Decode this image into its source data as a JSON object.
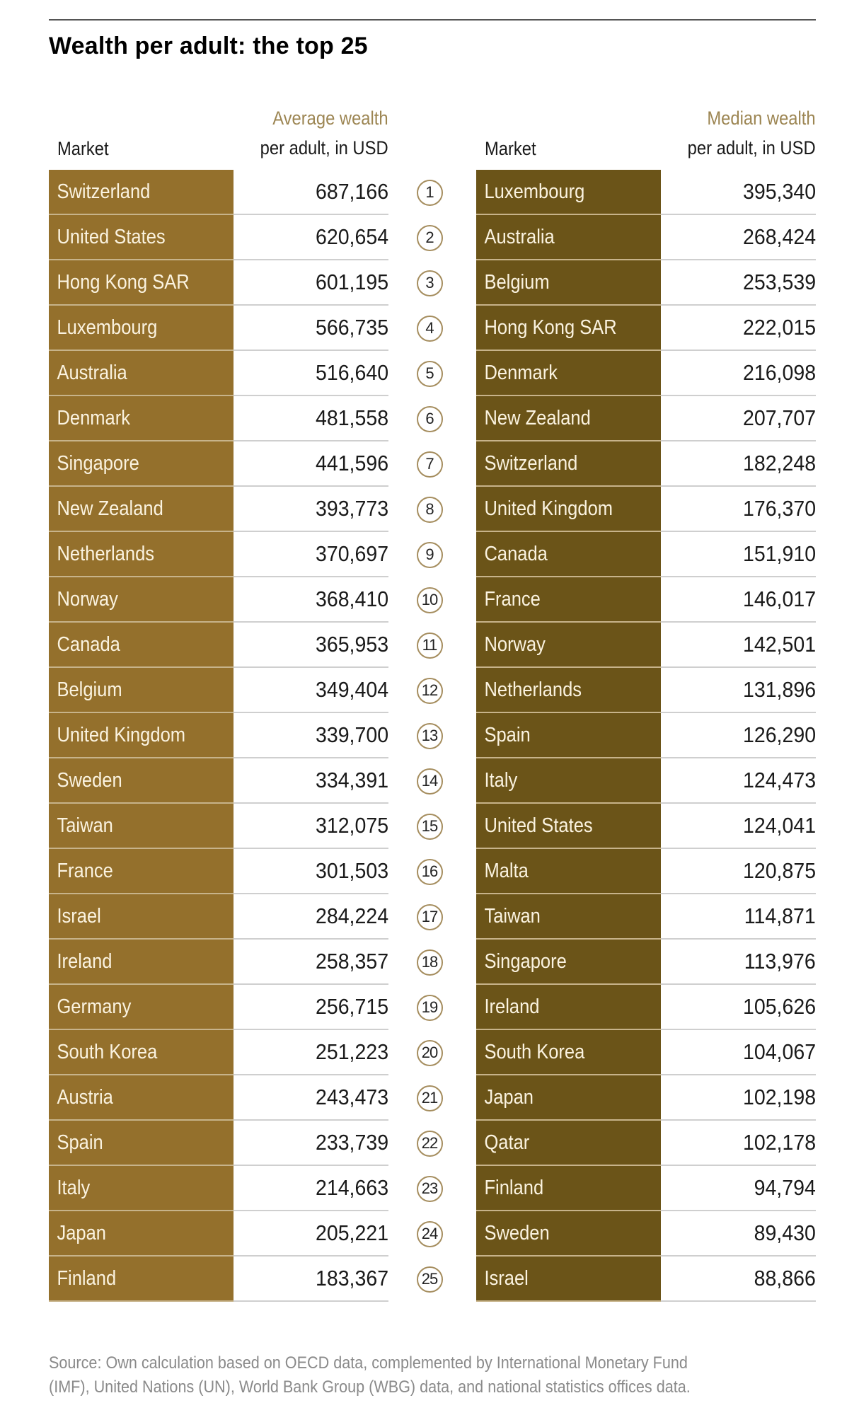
{
  "title": "Wealth per adult: the top 25",
  "left_table": {
    "market_header": "Market",
    "value_header_line1": "Average wealth",
    "value_header_line2": "per adult, in USD",
    "rows": [
      {
        "market": "Switzerland",
        "value": "687,166"
      },
      {
        "market": "United States",
        "value": "620,654"
      },
      {
        "market": "Hong Kong SAR",
        "value": "601,195"
      },
      {
        "market": "Luxembourg",
        "value": "566,735"
      },
      {
        "market": "Australia",
        "value": "516,640"
      },
      {
        "market": "Denmark",
        "value": "481,558"
      },
      {
        "market": "Singapore",
        "value": "441,596"
      },
      {
        "market": "New Zealand",
        "value": "393,773"
      },
      {
        "market": "Netherlands",
        "value": "370,697"
      },
      {
        "market": "Norway",
        "value": "368,410"
      },
      {
        "market": "Canada",
        "value": "365,953"
      },
      {
        "market": "Belgium",
        "value": "349,404"
      },
      {
        "market": "United Kingdom",
        "value": "339,700"
      },
      {
        "market": "Sweden",
        "value": "334,391"
      },
      {
        "market": "Taiwan",
        "value": "312,075"
      },
      {
        "market": "France",
        "value": "301,503"
      },
      {
        "market": "Israel",
        "value": "284,224"
      },
      {
        "market": "Ireland",
        "value": "258,357"
      },
      {
        "market": "Germany",
        "value": "256,715"
      },
      {
        "market": "South Korea",
        "value": "251,223"
      },
      {
        "market": "Austria",
        "value": "243,473"
      },
      {
        "market": "Spain",
        "value": "233,739"
      },
      {
        "market": "Italy",
        "value": "214,663"
      },
      {
        "market": "Japan",
        "value": "205,221"
      },
      {
        "market": "Finland",
        "value": "183,367"
      }
    ]
  },
  "ranks": [
    "1",
    "2",
    "3",
    "4",
    "5",
    "6",
    "7",
    "8",
    "9",
    "10",
    "11",
    "12",
    "13",
    "14",
    "15",
    "16",
    "17",
    "18",
    "19",
    "20",
    "21",
    "22",
    "23",
    "24",
    "25"
  ],
  "right_table": {
    "market_header": "Market",
    "value_header_line1": "Median wealth",
    "value_header_line2": "per adult, in USD",
    "rows": [
      {
        "market": "Luxembourg",
        "value": "395,340"
      },
      {
        "market": "Australia",
        "value": "268,424"
      },
      {
        "market": "Belgium",
        "value": "253,539"
      },
      {
        "market": "Hong Kong SAR",
        "value": "222,015"
      },
      {
        "market": "Denmark",
        "value": "216,098"
      },
      {
        "market": "New Zealand",
        "value": "207,707"
      },
      {
        "market": "Switzerland",
        "value": "182,248"
      },
      {
        "market": "United Kingdom",
        "value": "176,370"
      },
      {
        "market": "Canada",
        "value": "151,910"
      },
      {
        "market": "France",
        "value": "146,017"
      },
      {
        "market": "Norway",
        "value": "142,501"
      },
      {
        "market": "Netherlands",
        "value": "131,896"
      },
      {
        "market": "Spain",
        "value": "126,290"
      },
      {
        "market": "Italy",
        "value": "124,473"
      },
      {
        "market": "United States",
        "value": "124,041"
      },
      {
        "market": "Malta",
        "value": "120,875"
      },
      {
        "market": "Taiwan",
        "value": "114,871"
      },
      {
        "market": "Singapore",
        "value": "113,976"
      },
      {
        "market": "Ireland",
        "value": "105,626"
      },
      {
        "market": "South Korea",
        "value": "104,067"
      },
      {
        "market": "Japan",
        "value": "102,198"
      },
      {
        "market": "Qatar",
        "value": "102,178"
      },
      {
        "market": "Finland",
        "value": "94,794"
      },
      {
        "market": "Sweden",
        "value": "89,430"
      },
      {
        "market": "Israel",
        "value": "88,866"
      }
    ]
  },
  "source_line1": "Source: Own calculation based on OECD data, complemented by International Monetary Fund",
  "source_line2": "(IMF), United Nations (UN), World Bank Group (WBG) data, and national statistics offices data.",
  "colors": {
    "left_market_cell": "#94702c",
    "right_market_cell": "#6b5418",
    "header_accent": "#9c8552",
    "rank_circle": "#a58d5e"
  }
}
